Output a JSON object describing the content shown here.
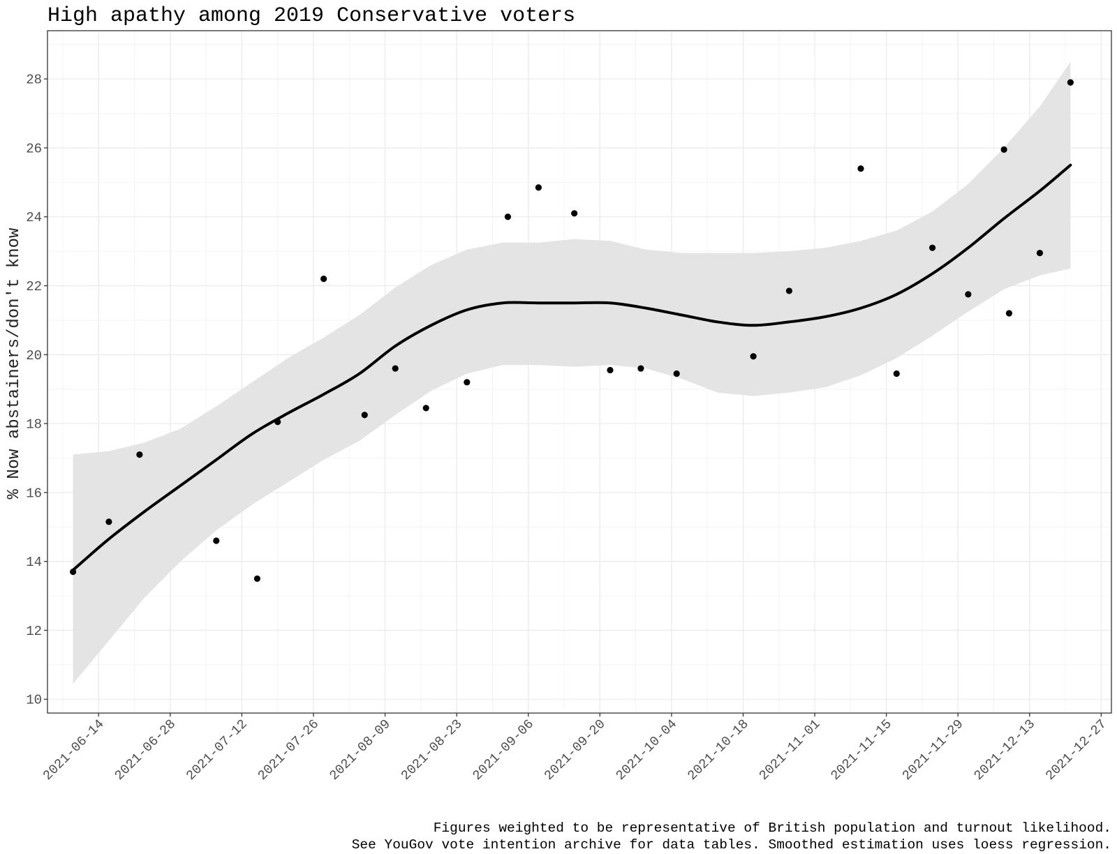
{
  "chart_data": {
    "type": "scatter",
    "title": "High apathy among 2019 Conservative voters",
    "ylabel": "% Now abstainers/don't know",
    "xlabel": "",
    "caption": [
      "Figures weighted to be representative of British population and turnout likelihood.",
      "See YouGov vote intention archive for data tables. Smoothed estimation uses loess regression."
    ],
    "x_type": "date",
    "xlim": [
      "2021-06-04",
      "2021-12-29"
    ],
    "ylim": [
      9.6,
      29.4
    ],
    "x_ticks": [
      "2021-06-14",
      "2021-06-28",
      "2021-07-12",
      "2021-07-26",
      "2021-08-09",
      "2021-08-23",
      "2021-09-06",
      "2021-09-20",
      "2021-10-04",
      "2021-10-18",
      "2021-11-01",
      "2021-11-15",
      "2021-11-29",
      "2021-12-13",
      "2021-12-27"
    ],
    "y_ticks": [
      10,
      12,
      14,
      16,
      18,
      20,
      22,
      24,
      26,
      28
    ],
    "grid": true,
    "legend": "none",
    "colors": {
      "points": "#000000",
      "smooth_line": "#000000",
      "confidence_band": "#e3e3e3",
      "grid_major": "#ebebeb",
      "grid_minor": "#f4f4f4",
      "panel_border": "#333333"
    },
    "series": [
      {
        "type": "scatter",
        "points": [
          {
            "x": "2021-06-09",
            "y": 13.7
          },
          {
            "x": "2021-06-16",
            "y": 15.15
          },
          {
            "x": "2021-06-22",
            "y": 17.1
          },
          {
            "x": "2021-07-07",
            "y": 14.6
          },
          {
            "x": "2021-07-15",
            "y": 13.5
          },
          {
            "x": "2021-07-19",
            "y": 18.05
          },
          {
            "x": "2021-07-28",
            "y": 22.2
          },
          {
            "x": "2021-08-05",
            "y": 18.25
          },
          {
            "x": "2021-08-11",
            "y": 19.6
          },
          {
            "x": "2021-08-17",
            "y": 18.45
          },
          {
            "x": "2021-08-25",
            "y": 19.2
          },
          {
            "x": "2021-09-02",
            "y": 24.0
          },
          {
            "x": "2021-09-08",
            "y": 24.85
          },
          {
            "x": "2021-09-15",
            "y": 24.1
          },
          {
            "x": "2021-09-22",
            "y": 19.55
          },
          {
            "x": "2021-09-28",
            "y": 19.6
          },
          {
            "x": "2021-10-05",
            "y": 19.45
          },
          {
            "x": "2021-10-20",
            "y": 19.95
          },
          {
            "x": "2021-10-27",
            "y": 21.85
          },
          {
            "x": "2021-11-10",
            "y": 25.4
          },
          {
            "x": "2021-11-17",
            "y": 19.45
          },
          {
            "x": "2021-11-24",
            "y": 23.1
          },
          {
            "x": "2021-12-01",
            "y": 21.75
          },
          {
            "x": "2021-12-08",
            "y": 25.95
          },
          {
            "x": "2021-12-09",
            "y": 21.2
          },
          {
            "x": "2021-12-15",
            "y": 22.95
          },
          {
            "x": "2021-12-21",
            "y": 27.9
          }
        ]
      },
      {
        "type": "loess",
        "points": [
          {
            "x": "2021-06-09",
            "y": 13.75,
            "lower": 10.45,
            "upper": 17.1
          },
          {
            "x": "2021-06-16",
            "y": 14.65,
            "lower": 11.7,
            "upper": 17.2
          },
          {
            "x": "2021-06-23",
            "y": 15.45,
            "lower": 12.95,
            "upper": 17.45
          },
          {
            "x": "2021-06-30",
            "y": 16.2,
            "lower": 14.0,
            "upper": 17.85
          },
          {
            "x": "2021-07-07",
            "y": 16.95,
            "lower": 14.9,
            "upper": 18.5
          },
          {
            "x": "2021-07-14",
            "y": 17.7,
            "lower": 15.65,
            "upper": 19.2
          },
          {
            "x": "2021-07-21",
            "y": 18.3,
            "lower": 16.3,
            "upper": 19.9
          },
          {
            "x": "2021-07-28",
            "y": 18.85,
            "lower": 16.95,
            "upper": 20.5
          },
          {
            "x": "2021-08-04",
            "y": 19.45,
            "lower": 17.5,
            "upper": 21.15
          },
          {
            "x": "2021-08-11",
            "y": 20.25,
            "lower": 18.25,
            "upper": 21.95
          },
          {
            "x": "2021-08-18",
            "y": 20.85,
            "lower": 18.95,
            "upper": 22.6
          },
          {
            "x": "2021-08-25",
            "y": 21.3,
            "lower": 19.45,
            "upper": 23.05
          },
          {
            "x": "2021-09-01",
            "y": 21.5,
            "lower": 19.7,
            "upper": 23.25
          },
          {
            "x": "2021-09-08",
            "y": 21.5,
            "lower": 19.7,
            "upper": 23.25
          },
          {
            "x": "2021-09-15",
            "y": 21.5,
            "lower": 19.65,
            "upper": 23.35
          },
          {
            "x": "2021-09-22",
            "y": 21.5,
            "lower": 19.7,
            "upper": 23.3
          },
          {
            "x": "2021-09-29",
            "y": 21.35,
            "lower": 19.6,
            "upper": 23.05
          },
          {
            "x": "2021-10-06",
            "y": 21.15,
            "lower": 19.3,
            "upper": 22.95
          },
          {
            "x": "2021-10-13",
            "y": 20.95,
            "lower": 18.9,
            "upper": 22.95
          },
          {
            "x": "2021-10-20",
            "y": 20.85,
            "lower": 18.8,
            "upper": 22.95
          },
          {
            "x": "2021-10-27",
            "y": 20.95,
            "lower": 18.9,
            "upper": 23.0
          },
          {
            "x": "2021-11-03",
            "y": 21.1,
            "lower": 19.05,
            "upper": 23.1
          },
          {
            "x": "2021-11-10",
            "y": 21.35,
            "lower": 19.4,
            "upper": 23.3
          },
          {
            "x": "2021-11-17",
            "y": 21.75,
            "lower": 19.9,
            "upper": 23.6
          },
          {
            "x": "2021-11-24",
            "y": 22.35,
            "lower": 20.55,
            "upper": 24.15
          },
          {
            "x": "2021-12-01",
            "y": 23.1,
            "lower": 21.25,
            "upper": 24.95
          },
          {
            "x": "2021-12-08",
            "y": 23.95,
            "lower": 21.9,
            "upper": 26.0
          },
          {
            "x": "2021-12-15",
            "y": 24.75,
            "lower": 22.3,
            "upper": 27.2
          },
          {
            "x": "2021-12-21",
            "y": 25.5,
            "lower": 22.5,
            "upper": 28.5
          }
        ]
      }
    ]
  }
}
